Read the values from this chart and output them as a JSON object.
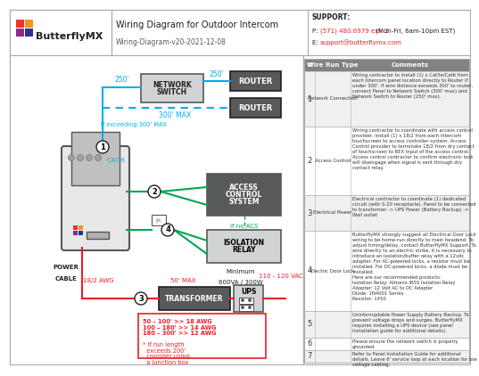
{
  "title": "Wiring Diagram for Outdoor Intercom",
  "subtitle": "Wiring-Diagram-v20-2021-12-08",
  "support_header": "SUPPORT:",
  "support_phone_label": "P:",
  "support_phone": "(571) 480.6979 ext. 2",
  "support_phone_suffix": " (Mon-Fri, 6am-10pm EST)",
  "support_email_label": "E:",
  "support_email": "support@butterflymx.com",
  "cyan": "#00aeef",
  "green": "#00a651",
  "red": "#ed1c24",
  "dark_box": "#58595b",
  "light_box": "#d1d3d4",
  "table_header_bg": "#808285",
  "table_rows": [
    {
      "num": "1",
      "type": "Network Connection",
      "comment": "Wiring contractor to install (1) x Cat5e/Cat6 from each Intercom panel location directly to Router if under 300'. If wire distance exceeds 300' to router, connect Panel to Network Switch (300' max) and Network Switch to Router (250' max)."
    },
    {
      "num": "2",
      "type": "Access Control",
      "comment": "Wiring contractor to coordinate with access control provider, install (1) x 18/2 from each Intercom touchscreen to access controller system. Access Control provider to terminate 18/2 from dry contact of touchscreen to REX Input of the access control. Access control contractor to confirm electronic lock will disengage when signal is sent through dry contact relay."
    },
    {
      "num": "3",
      "type": "Electrical Power",
      "comment": "Electrical contractor to coordinate (1) dedicated circuit (with S-20 receptacle). Panel to be connected to transformer -> UPS Power (Battery Backup) -> Wall outlet"
    },
    {
      "num": "4",
      "type": "Electric Door Lock",
      "comment": "ButterflyMX strongly suggest all Electrical Door Lock wiring to be home-run directly to main headend. To adjust timing/delay, contact ButterflyMX Support. To wire directly to an electric strike, it is necessary to introduce an isolation/buffer relay with a 12vdc adapter. For AC-powered locks, a resistor must be installed. For DC-powered locks, a diode must be installed.\nHere are our recommended products:\nIsolation Relay: Altronix IR5S Isolation Relay\nAdapter: 12 Volt AC to DC Adapter\nDiode: 1N4001 Series\nResistor: 1450"
    },
    {
      "num": "5",
      "type": "",
      "comment": "Uninterruptable Power Supply Battery Backup. To prevent voltage drops and surges, ButterflyMX requires installing a UPS device (see panel installation guide for additional details)."
    },
    {
      "num": "6",
      "type": "",
      "comment": "Please ensure the network switch is properly grounded."
    },
    {
      "num": "7",
      "type": "",
      "comment": "Refer to Panel Installation Guide for additional details. Leave 6' service loop at each location for low voltage cabling."
    }
  ]
}
